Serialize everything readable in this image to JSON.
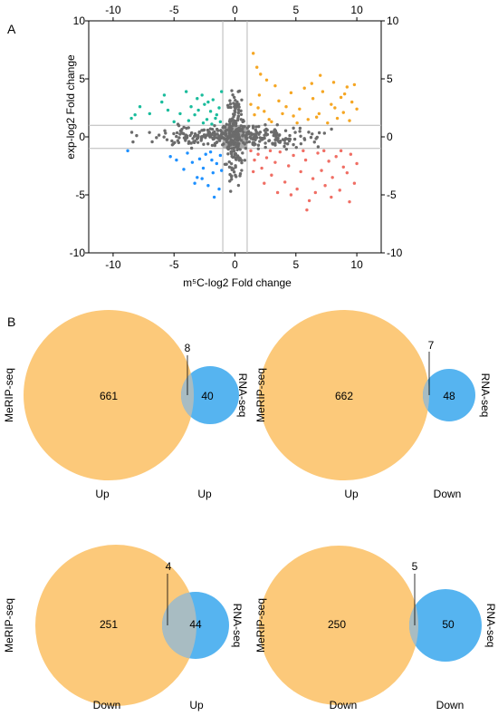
{
  "panel_labels": {
    "a": "A",
    "b": "B"
  },
  "colors": {
    "gray": "#6b6b6b",
    "green": "#1abc9c",
    "orange": "#f5a623",
    "blue": "#1e90ff",
    "red": "#f06e64",
    "center_box": "#aaaaaa",
    "meRIP_fill": "#fcc97a",
    "rna_fill": "#56b4f0",
    "overlap_fill": "#a8bcc2"
  },
  "chart_data": [
    {
      "type": "scatter",
      "title": "",
      "xlabel": "m⁵C-log2 Fold change",
      "ylabel": "exp-log2 Fold change",
      "xlim": [
        -12,
        12
      ],
      "ylim": [
        -10,
        10
      ],
      "x_ticks": [
        -10,
        -5,
        0,
        5,
        10
      ],
      "y_ticks": [
        -10,
        -5,
        0,
        5,
        10
      ],
      "x_tick_labels": [
        "-10",
        "-5",
        "0",
        "5",
        "10"
      ],
      "y_tick_labels": [
        "-10",
        "-5",
        "0",
        "5",
        "10"
      ],
      "x_cutoffs": [
        -1,
        1
      ],
      "y_cutoffs": [
        -1,
        1
      ],
      "grid": false,
      "central_box": {
        "x": [
          -1,
          1
        ],
        "y": [
          -1,
          1
        ]
      },
      "series": [
        {
          "color_key": "green",
          "points": [
            [
              -8.5,
              1.6
            ],
            [
              -8.2,
              1.9
            ],
            [
              -7.8,
              2.6
            ],
            [
              -6.0,
              3.0
            ],
            [
              -5.8,
              3.6
            ],
            [
              -5.5,
              2.3
            ],
            [
              -4.0,
              3.9
            ],
            [
              -3.6,
              2.6
            ],
            [
              -3.3,
              1.9
            ],
            [
              -3.0,
              2.3
            ],
            [
              -2.7,
              3.6
            ],
            [
              -2.5,
              2.8
            ],
            [
              -2.3,
              1.5
            ],
            [
              -2.0,
              2.2
            ],
            [
              -1.8,
              3.2
            ],
            [
              -1.6,
              1.6
            ],
            [
              -1.5,
              1.9
            ],
            [
              -1.3,
              2.5
            ],
            [
              -1.2,
              1.3
            ],
            [
              -1.1,
              3.9
            ],
            [
              -2.6,
              1.2
            ],
            [
              -3.8,
              1.4
            ],
            [
              -4.5,
              2.0
            ],
            [
              -5.0,
              1.3
            ],
            [
              -1.9,
              1.1
            ],
            [
              -2.2,
              3.0
            ],
            [
              -7.0,
              2.0
            ],
            [
              -3.1,
              3.3
            ]
          ]
        },
        {
          "color_key": "orange",
          "points": [
            [
              1.5,
              7.2
            ],
            [
              1.8,
              6.0
            ],
            [
              2.1,
              5.4
            ],
            [
              2.6,
              4.9
            ],
            [
              3.3,
              4.4
            ],
            [
              2.0,
              3.6
            ],
            [
              1.3,
              2.8
            ],
            [
              1.6,
              1.9
            ],
            [
              2.4,
              2.2
            ],
            [
              3.0,
              1.3
            ],
            [
              3.6,
              3.1
            ],
            [
              4.2,
              2.6
            ],
            [
              4.8,
              1.8
            ],
            [
              5.3,
              2.4
            ],
            [
              5.7,
              4.2
            ],
            [
              6.0,
              1.5
            ],
            [
              6.4,
              3.3
            ],
            [
              6.9,
              2.0
            ],
            [
              7.2,
              3.9
            ],
            [
              7.6,
              1.2
            ],
            [
              7.9,
              2.8
            ],
            [
              8.1,
              4.7
            ],
            [
              8.4,
              1.6
            ],
            [
              8.7,
              3.4
            ],
            [
              8.9,
              2.1
            ],
            [
              9.2,
              4.3
            ],
            [
              9.4,
              1.4
            ],
            [
              9.6,
              3.0
            ],
            [
              9.8,
              4.5
            ],
            [
              10.0,
              2.4
            ],
            [
              7.0,
              5.3
            ],
            [
              6.3,
              4.6
            ],
            [
              4.6,
              3.8
            ],
            [
              3.9,
              2.0
            ],
            [
              2.8,
              1.5
            ],
            [
              5.1,
              1.2
            ],
            [
              8.2,
              2.5
            ],
            [
              9.0,
              3.7
            ],
            [
              6.7,
              1.7
            ],
            [
              1.9,
              2.5
            ]
          ]
        },
        {
          "color_key": "blue",
          "points": [
            [
              -8.8,
              -1.2
            ],
            [
              -5.3,
              -1.7
            ],
            [
              -4.2,
              -2.8
            ],
            [
              -3.9,
              -1.4
            ],
            [
              -3.5,
              -2.2
            ],
            [
              -3.1,
              -3.5
            ],
            [
              -2.9,
              -1.9
            ],
            [
              -2.6,
              -2.7
            ],
            [
              -2.2,
              -4.2
            ],
            [
              -2.0,
              -1.3
            ],
            [
              -1.8,
              -3.1
            ],
            [
              -1.5,
              -2.3
            ],
            [
              -1.3,
              -4.5
            ],
            [
              -1.2,
              -1.6
            ],
            [
              -2.7,
              -3.6
            ],
            [
              -3.3,
              -4.0
            ],
            [
              -1.7,
              -5.2
            ],
            [
              -4.8,
              -2.0
            ],
            [
              -2.4,
              -1.5
            ],
            [
              -1.1,
              -2.9
            ],
            [
              -1.9,
              -2.0
            ]
          ]
        },
        {
          "color_key": "red",
          "points": [
            [
              1.3,
              -1.2
            ],
            [
              1.6,
              -2.0
            ],
            [
              1.9,
              -1.5
            ],
            [
              2.2,
              -2.7
            ],
            [
              2.6,
              -1.8
            ],
            [
              3.0,
              -3.3
            ],
            [
              3.3,
              -2.2
            ],
            [
              3.7,
              -1.3
            ],
            [
              4.1,
              -3.9
            ],
            [
              4.4,
              -2.5
            ],
            [
              4.8,
              -1.6
            ],
            [
              5.1,
              -4.5
            ],
            [
              5.4,
              -3.0
            ],
            [
              5.8,
              -2.0
            ],
            [
              6.1,
              -5.5
            ],
            [
              6.4,
              -3.6
            ],
            [
              6.8,
              -1.4
            ],
            [
              7.1,
              -2.9
            ],
            [
              7.4,
              -4.2
            ],
            [
              7.7,
              -2.1
            ],
            [
              8.0,
              -3.5
            ],
            [
              8.3,
              -1.7
            ],
            [
              8.6,
              -4.6
            ],
            [
              8.9,
              -2.6
            ],
            [
              9.2,
              -3.1
            ],
            [
              9.5,
              -1.5
            ],
            [
              9.8,
              -4.0
            ],
            [
              10.0,
              -2.3
            ],
            [
              2.4,
              -4.0
            ],
            [
              3.5,
              -4.8
            ],
            [
              5.9,
              -6.3
            ],
            [
              4.6,
              -5.0
            ],
            [
              6.6,
              -4.8
            ],
            [
              7.9,
              -5.2
            ],
            [
              9.4,
              -5.6
            ],
            [
              1.5,
              -3.0
            ],
            [
              2.9,
              -1.2
            ],
            [
              5.6,
              -1.2
            ],
            [
              7.3,
              -1.2
            ],
            [
              8.7,
              -1.2
            ]
          ]
        }
      ]
    },
    {
      "type": "venn",
      "left_label": "MeRIP-seq",
      "right_label": "RNA-seq",
      "left_only": "661",
      "overlap": "8",
      "right_only": "40",
      "left_direction": "Up",
      "right_direction": "Up"
    },
    {
      "type": "venn",
      "left_label": "MeRIP-seq",
      "right_label": "RNA-seq",
      "left_only": "662",
      "overlap": "7",
      "right_only": "48",
      "left_direction": "Up",
      "right_direction": "Down"
    },
    {
      "type": "venn",
      "left_label": "MeRIP-seq",
      "right_label": "RNA-seq",
      "left_only": "251",
      "overlap": "4",
      "right_only": "44",
      "left_direction": "Down",
      "right_direction": "Up"
    },
    {
      "type": "venn",
      "left_label": "MeRIP-seq",
      "right_label": "RNA-seq",
      "left_only": "250",
      "overlap": "5",
      "right_only": "50",
      "left_direction": "Down",
      "right_direction": "Down"
    }
  ]
}
